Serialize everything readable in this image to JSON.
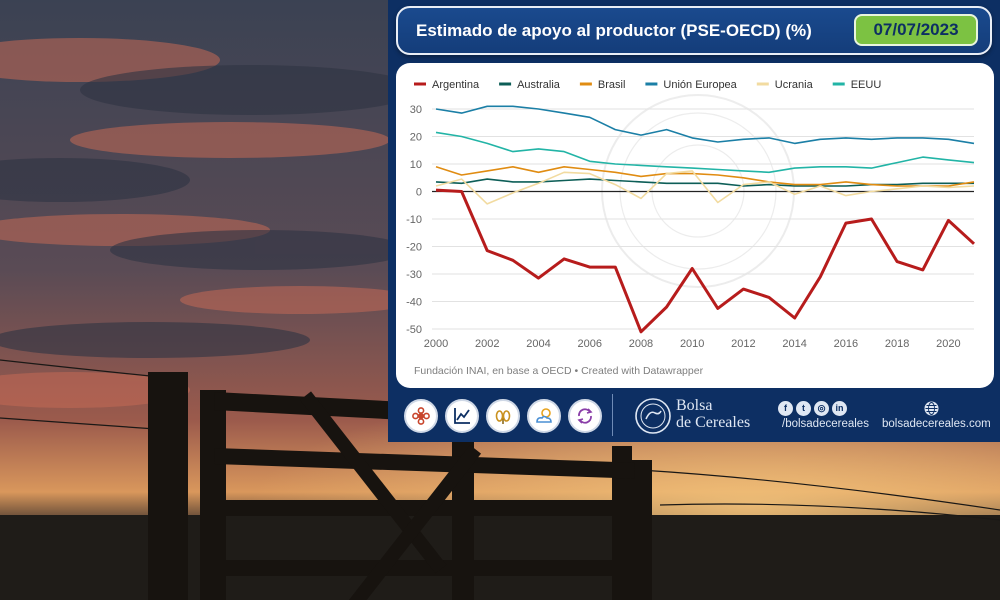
{
  "card": {
    "title": "Estimado de apoyo al productor (PSE-OECD) (%)",
    "date": "07/07/2023",
    "source": "Fundación INAI, en base a OECD • Created with Datawrapper"
  },
  "footer": {
    "icons": [
      "flower-icon",
      "trend-chart-icon",
      "grain-icon",
      "weather-icon",
      "exchange-icon"
    ],
    "org_name_line1": "Bolsa",
    "org_name_line2": "de Cereales",
    "social_handle": "/bolsadecereales",
    "website": "bolsadecereales.com"
  },
  "colors": {
    "card_background": "#0d2f63",
    "date_badge": "#7cc242"
  },
  "chart_data": {
    "type": "line",
    "title": "Estimado de apoyo al productor (PSE-OECD) (%)",
    "xlabel": "",
    "ylabel": "",
    "legend_position": "top-left",
    "grid": true,
    "xlim": [
      2000,
      2021
    ],
    "ylim": [
      -50,
      30
    ],
    "x_ticks": [
      "2000",
      "2002",
      "2004",
      "2006",
      "2008",
      "2010",
      "2012",
      "2014",
      "2016",
      "2018",
      "2020"
    ],
    "y_ticks": [
      "30",
      "20",
      "10",
      "0",
      "-10",
      "-20",
      "-30",
      "-40",
      "-50"
    ],
    "x": [
      2000,
      2001,
      2002,
      2003,
      2004,
      2005,
      2006,
      2007,
      2008,
      2009,
      2010,
      2011,
      2012,
      2013,
      2014,
      2015,
      2016,
      2017,
      2018,
      2019,
      2020,
      2021
    ],
    "series": [
      {
        "name": "Argentina",
        "color": "#b71c1c",
        "width": 3,
        "values": [
          0.5,
          0,
          -21.5,
          -25,
          -31.5,
          -24.5,
          -27.5,
          -27.5,
          -51,
          -42,
          -28,
          -42.5,
          -35.5,
          -38.5,
          -46,
          -31,
          -11.5,
          -10,
          -25.5,
          -28.5,
          -10.5,
          -19
        ]
      },
      {
        "name": "Australia",
        "color": "#0d5e57",
        "width": 1.6,
        "values": [
          3.5,
          3,
          4.5,
          3.5,
          3.5,
          4,
          4.5,
          4,
          3.5,
          3,
          3,
          3,
          2,
          2.5,
          2,
          2,
          2,
          2.5,
          2.5,
          3,
          3,
          3
        ]
      },
      {
        "name": "Brasil",
        "color": "#e08c12",
        "width": 1.6,
        "values": [
          9,
          6,
          7.5,
          9,
          7,
          9,
          8,
          7,
          5.5,
          6.5,
          6.5,
          6,
          5,
          3.5,
          2.5,
          2.5,
          3.5,
          2.5,
          2,
          2,
          2,
          3.5
        ]
      },
      {
        "name": "Unión Europea",
        "color": "#1b7fa6",
        "width": 1.6,
        "values": [
          30,
          28.5,
          31,
          31,
          30,
          28.5,
          27,
          22.5,
          20.5,
          22.5,
          19.5,
          18,
          19,
          19.5,
          17.5,
          19,
          19.5,
          19,
          19.5,
          19.5,
          19,
          17.5
        ]
      },
      {
        "name": "Ucrania",
        "color": "#f2dba0",
        "width": 1.6,
        "values": [
          2,
          4.5,
          -4.5,
          -0.5,
          3,
          7,
          6.5,
          2.5,
          -2.5,
          6.5,
          7.5,
          -4,
          2.5,
          3.5,
          -1,
          2,
          -1.5,
          0,
          1,
          2,
          1.5,
          2
        ]
      },
      {
        "name": "EEUU",
        "color": "#22b4a6",
        "width": 1.6,
        "values": [
          21.5,
          20,
          17.5,
          14.5,
          15.5,
          14.5,
          11,
          10,
          9.5,
          9,
          8.5,
          8,
          7.5,
          7,
          8.5,
          9,
          9,
          8.5,
          10.5,
          12.5,
          11.5,
          10.5
        ]
      }
    ]
  }
}
